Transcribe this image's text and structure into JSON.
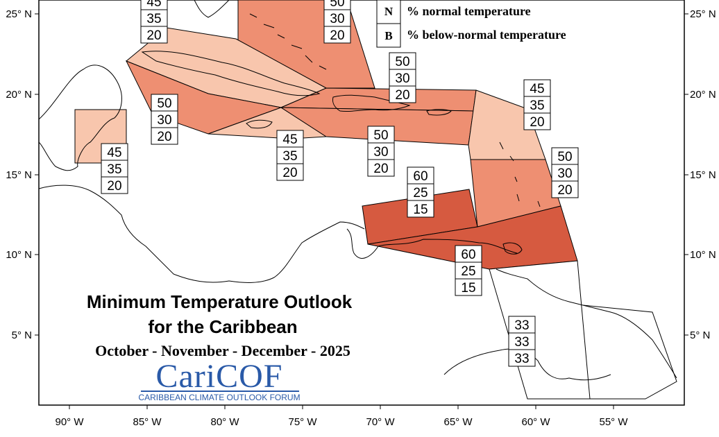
{
  "title_line1": "Minimum Temperature Outlook",
  "title_line2": "for the Caribbean",
  "period": "October - November - December - 2025",
  "legend": [
    {
      "letter": "N",
      "label": "% normal temperature"
    },
    {
      "letter": "B",
      "label": "% below-normal temperature"
    }
  ],
  "logo": {
    "name": "CariCOF",
    "tagline": "CARIBBEAN CLIMATE OUTLOOK FORUM"
  },
  "lon_ticks": [
    "90° W",
    "85° W",
    "80° W",
    "75° W",
    "70° W",
    "65° W",
    "60° W",
    "55° W"
  ],
  "lat_ticks": [
    "25° N",
    "20° N",
    "15° N",
    "10° N",
    "5° N"
  ],
  "colors": {
    "prob45": "#f8c6ad",
    "prob50": "#ee8f72",
    "prob60": "#d65a40",
    "prob33": "#ffffff",
    "outline": "#000000"
  },
  "regions": [
    {
      "id": "bahamas",
      "values": [
        "50",
        "30",
        "20"
      ],
      "tier": "prob50"
    },
    {
      "id": "cuba",
      "values": [
        "45",
        "35",
        "20"
      ],
      "tier": "prob45"
    },
    {
      "id": "belize",
      "values": [
        "45",
        "35",
        "20"
      ],
      "tier": "prob45"
    },
    {
      "id": "cayman-sw",
      "values": [
        "50",
        "30",
        "20"
      ],
      "tier": "prob50"
    },
    {
      "id": "jamaica",
      "values": [
        "45",
        "35",
        "20"
      ],
      "tier": "prob45"
    },
    {
      "id": "hispaniola-north",
      "values": [
        "50",
        "30",
        "20"
      ],
      "tier": "prob50"
    },
    {
      "id": "hispaniola-south",
      "values": [
        "50",
        "30",
        "20"
      ],
      "tier": "prob50"
    },
    {
      "id": "leewards",
      "values": [
        "45",
        "35",
        "20"
      ],
      "tier": "prob45"
    },
    {
      "id": "windwards",
      "values": [
        "50",
        "30",
        "20"
      ],
      "tier": "prob50"
    },
    {
      "id": "abc-islands",
      "values": [
        "60",
        "25",
        "15"
      ],
      "tier": "prob60"
    },
    {
      "id": "trinidad",
      "values": [
        "60",
        "25",
        "15"
      ],
      "tier": "prob60"
    },
    {
      "id": "guianas",
      "values": [
        "33",
        "33",
        "33"
      ],
      "tier": "prob33"
    }
  ]
}
